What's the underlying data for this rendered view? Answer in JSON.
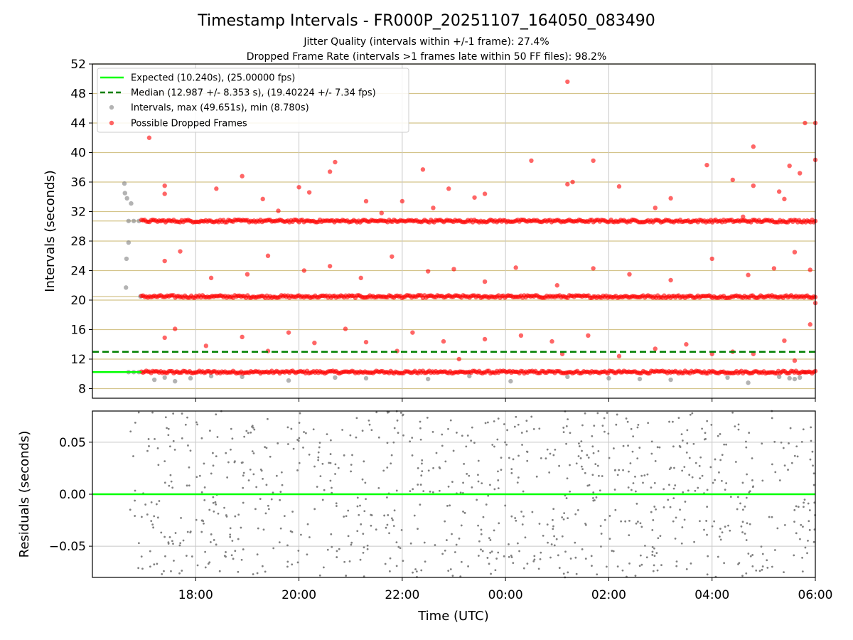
{
  "chart_data": [
    {
      "type": "scatter",
      "title": "Timestamp Intervals - FR000P_20251107_164050_083490",
      "subtitle_1": "Jitter Quality (intervals within +/-1 frame): 27.4%",
      "subtitle_2": "Dropped Frame Rate (intervals >1 frames late within 50 FF files): 98.2%",
      "xlabel": "",
      "ylabel": "Intervals (seconds)",
      "x_unit": "hours since 16:00 UTC (Nov 7)",
      "xlim": [
        0.0,
        14.0
      ],
      "ylim": [
        6.7,
        52.0
      ],
      "yticks": [
        8,
        12,
        16,
        20,
        24,
        28,
        32,
        36,
        40,
        44,
        48,
        52
      ],
      "ytick_labels": [
        "8",
        "12",
        "16",
        "20",
        "24",
        "28",
        "32",
        "36",
        "40",
        "44",
        "48",
        "52"
      ],
      "xticks": [
        2,
        4,
        6,
        8,
        10,
        12,
        14
      ],
      "horizontal_gridlines": [
        8.0,
        10.24,
        12.0,
        16.0,
        20.0,
        20.48,
        24.0,
        28.0,
        30.72,
        32.0,
        36.0,
        40.0,
        44.0,
        48.0,
        52.0
      ],
      "legend_position": "top-left",
      "legend": [
        "Expected (10.240s), (25.00000 fps)",
        "Median (12.987 +/- 8.353 s), (19.40224 +/- 7.34 fps)",
        "Intervals, max (49.651s), min (8.780s)",
        "Possible Dropped Frames"
      ],
      "series": [
        {
          "name": "Expected",
          "type": "hline",
          "y": 10.24,
          "x_range": [
            0.0,
            0.95
          ],
          "color": "#00ff00",
          "style": "solid"
        },
        {
          "name": "Median",
          "type": "hline",
          "y": 12.987,
          "x_range": [
            0.0,
            14.0
          ],
          "color": "#008000",
          "style": "dashed"
        },
        {
          "name": "Intervals",
          "type": "scatter",
          "color": "#808080",
          "points": [
            [
              0.62,
              35.8
            ],
            [
              0.63,
              34.5
            ],
            [
              0.67,
              33.8
            ],
            [
              0.75,
              33.1
            ],
            [
              0.66,
              25.6
            ],
            [
              0.7,
              27.8
            ],
            [
              0.65,
              21.7
            ],
            [
              0.93,
              20.5
            ],
            [
              0.7,
              30.72
            ],
            [
              0.8,
              30.72
            ],
            [
              0.9,
              30.72
            ],
            [
              0.7,
              10.24
            ],
            [
              0.8,
              10.24
            ],
            [
              0.9,
              10.24
            ],
            [
              1.2,
              9.2
            ],
            [
              1.4,
              9.5
            ],
            [
              1.6,
              9.0
            ],
            [
              1.9,
              9.4
            ],
            [
              2.3,
              9.7
            ],
            [
              2.9,
              9.6
            ],
            [
              3.8,
              9.1
            ],
            [
              4.7,
              9.5
            ],
            [
              5.3,
              9.4
            ],
            [
              6.5,
              9.3
            ],
            [
              7.3,
              9.7
            ],
            [
              8.1,
              9.0
            ],
            [
              9.2,
              9.6
            ],
            [
              10.0,
              9.4
            ],
            [
              10.6,
              9.3
            ],
            [
              11.2,
              9.2
            ],
            [
              12.3,
              9.5
            ],
            [
              12.7,
              8.8
            ],
            [
              13.3,
              9.6
            ],
            [
              13.5,
              9.4
            ],
            [
              13.6,
              9.3
            ],
            [
              13.7,
              9.5
            ],
            [
              13.8,
              10.24
            ]
          ]
        },
        {
          "name": "Possible Dropped Frames",
          "type": "scatter",
          "color": "#ff0000",
          "bands": [
            10.24,
            20.48,
            30.72
          ],
          "band_x_range": [
            0.95,
            14.0
          ],
          "outliers": [
            [
              1.1,
              42.0
            ],
            [
              1.4,
              35.5
            ],
            [
              1.4,
              34.4
            ],
            [
              2.4,
              35.1
            ],
            [
              2.9,
              36.8
            ],
            [
              3.3,
              33.7
            ],
            [
              3.6,
              32.1
            ],
            [
              4.0,
              35.3
            ],
            [
              4.2,
              34.6
            ],
            [
              4.6,
              37.4
            ],
            [
              4.7,
              38.7
            ],
            [
              5.3,
              33.4
            ],
            [
              5.6,
              31.8
            ],
            [
              6.0,
              33.4
            ],
            [
              6.4,
              37.7
            ],
            [
              6.6,
              32.5
            ],
            [
              6.9,
              35.1
            ],
            [
              7.4,
              33.9
            ],
            [
              7.6,
              34.4
            ],
            [
              8.5,
              38.9
            ],
            [
              9.2,
              35.7
            ],
            [
              9.3,
              36.0
            ],
            [
              9.7,
              38.9
            ],
            [
              10.2,
              35.4
            ],
            [
              10.9,
              32.5
            ],
            [
              11.2,
              33.8
            ],
            [
              11.9,
              38.3
            ],
            [
              12.4,
              36.3
            ],
            [
              12.6,
              31.3
            ],
            [
              12.8,
              35.5
            ],
            [
              13.3,
              34.7
            ],
            [
              13.4,
              33.7
            ],
            [
              13.5,
              38.2
            ],
            [
              13.7,
              37.2
            ],
            [
              13.8,
              44.0
            ],
            [
              14.0,
              44.0
            ],
            [
              14.0,
              39.0
            ],
            [
              12.8,
              40.8
            ],
            [
              9.2,
              49.6
            ],
            [
              1.4,
              25.3
            ],
            [
              1.7,
              26.6
            ],
            [
              2.3,
              23.0
            ],
            [
              3.0,
              23.5
            ],
            [
              3.4,
              26.0
            ],
            [
              4.1,
              24.0
            ],
            [
              4.6,
              24.6
            ],
            [
              5.2,
              23.0
            ],
            [
              5.8,
              25.9
            ],
            [
              6.5,
              23.9
            ],
            [
              7.0,
              24.2
            ],
            [
              7.6,
              22.5
            ],
            [
              8.2,
              24.4
            ],
            [
              9.0,
              22.0
            ],
            [
              9.7,
              24.3
            ],
            [
              10.4,
              23.5
            ],
            [
              11.2,
              22.7
            ],
            [
              12.0,
              25.6
            ],
            [
              12.7,
              23.4
            ],
            [
              13.2,
              24.3
            ],
            [
              13.6,
              26.5
            ],
            [
              13.9,
              24.1
            ],
            [
              1.4,
              14.9
            ],
            [
              1.6,
              16.1
            ],
            [
              2.2,
              13.8
            ],
            [
              2.9,
              15.0
            ],
            [
              3.4,
              13.1
            ],
            [
              3.8,
              15.6
            ],
            [
              4.3,
              14.2
            ],
            [
              4.9,
              16.1
            ],
            [
              5.3,
              14.3
            ],
            [
              5.9,
              13.1
            ],
            [
              6.2,
              15.6
            ],
            [
              6.8,
              14.4
            ],
            [
              7.1,
              12.0
            ],
            [
              7.6,
              14.7
            ],
            [
              8.3,
              15.2
            ],
            [
              8.9,
              14.4
            ],
            [
              9.1,
              12.7
            ],
            [
              9.6,
              15.2
            ],
            [
              10.2,
              12.4
            ],
            [
              10.9,
              13.4
            ],
            [
              11.5,
              14.0
            ],
            [
              12.0,
              12.7
            ],
            [
              12.4,
              13.0
            ],
            [
              12.8,
              12.7
            ],
            [
              13.4,
              14.5
            ],
            [
              13.6,
              11.8
            ],
            [
              13.9,
              16.7
            ],
            [
              14.0,
              19.6
            ]
          ]
        },
        {
          "name": "Residuals",
          "type": "scatter",
          "color": "#808080",
          "ylim": [
            -0.08,
            0.08
          ],
          "n_points": 900,
          "range": [
            -0.08,
            0.08
          ]
        }
      ]
    },
    {
      "type": "scatter",
      "title": "",
      "xlabel": "Time (UTC)",
      "ylabel": "Residuals (seconds)",
      "xlim": [
        0.0,
        14.0
      ],
      "ylim": [
        -0.08,
        0.08
      ],
      "yticks": [
        -0.05,
        0.0,
        0.05
      ],
      "ytick_labels": [
        "−0.05",
        "0.00",
        "0.05"
      ],
      "xticks": [
        2,
        4,
        6,
        8,
        10,
        12,
        14
      ],
      "xtick_labels": [
        "18:00",
        "20:00",
        "22:00",
        "00:00",
        "02:00",
        "04:00",
        "06:00"
      ],
      "zero_line_color": "#00ff00"
    }
  ]
}
